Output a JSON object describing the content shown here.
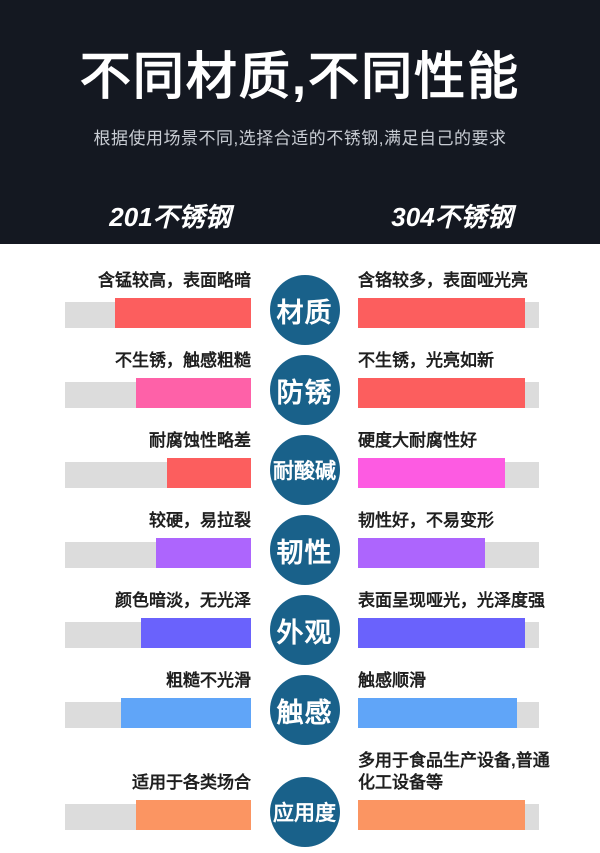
{
  "header": {
    "title": "不同材质,不同性能",
    "subtitle": "根据使用场景不同,选择合适的不锈钢,满足自己的要求",
    "left_column": "201不锈钢",
    "right_column": "304不锈钢"
  },
  "colors": {
    "header_bg": "#141821",
    "track": "#dcdcdc",
    "circle": "#19618a",
    "salmon": "#fc5e5e",
    "pink": "#fe61a8",
    "magenta": "#fd5be2",
    "purple": "#ad65fd",
    "violet": "#6a62fc",
    "blue": "#60a5f8",
    "orange": "#fb9562"
  },
  "rows": [
    {
      "category": "材质",
      "left": {
        "text": "含锰较高，表面略暗",
        "fill": 73,
        "color": "#fc5e5e"
      },
      "right": {
        "text": "含铬较多，表面哑光亮",
        "fill": 92,
        "color": "#fc5e5e"
      }
    },
    {
      "category": "防锈",
      "left": {
        "text": "不生锈，触感粗糙",
        "fill": 62,
        "color": "#fe61a8"
      },
      "right": {
        "text": "不生锈，光亮如新",
        "fill": 92,
        "color": "#fc5e5e"
      }
    },
    {
      "category": "耐酸碱",
      "left": {
        "text": "耐腐蚀性略差",
        "fill": 45,
        "color": "#fc5e5e"
      },
      "right": {
        "text": "硬度大耐腐性好",
        "fill": 81,
        "color": "#fd5be2"
      }
    },
    {
      "category": "韧性",
      "left": {
        "text": "较硬，易拉裂",
        "fill": 51,
        "color": "#ad65fd"
      },
      "right": {
        "text": "韧性好，不易变形",
        "fill": 70,
        "color": "#ad65fd"
      }
    },
    {
      "category": "外观",
      "left": {
        "text": "颜色暗淡，无光泽",
        "fill": 59,
        "color": "#6a62fc"
      },
      "right": {
        "text": "表面呈现哑光，光泽度强",
        "fill": 92,
        "color": "#6a62fc"
      }
    },
    {
      "category": "触感",
      "left": {
        "text": "粗糙不光滑",
        "fill": 70,
        "color": "#60a5f8"
      },
      "right": {
        "text": "触感顺滑",
        "fill": 88,
        "color": "#60a5f8"
      }
    },
    {
      "category": "应用度",
      "left": {
        "text": "适用于各类场合",
        "fill": 62,
        "color": "#fb9562"
      },
      "right": {
        "text": "多用于食品生产设备,普通\n化工设备等",
        "fill": 92,
        "color": "#fb9562"
      }
    }
  ],
  "chart_data": {
    "type": "bar",
    "title": "不同材质,不同性能",
    "subtitle": "根据使用场景不同,选择合适的不锈钢,满足自己的要求",
    "categories": [
      "材质",
      "防锈",
      "耐酸碱",
      "韧性",
      "外观",
      "触感",
      "应用度"
    ],
    "series": [
      {
        "name": "201不锈钢",
        "values": [
          73,
          62,
          45,
          51,
          59,
          70,
          62
        ],
        "labels": [
          "含锰较高，表面略暗",
          "不生锈，触感粗糙",
          "耐腐蚀性略差",
          "较硬，易拉裂",
          "颜色暗淡，无光泽",
          "粗糙不光滑",
          "适用于各类场合"
        ]
      },
      {
        "name": "304不锈钢",
        "values": [
          92,
          92,
          81,
          70,
          92,
          88,
          92
        ],
        "labels": [
          "含铬较多，表面哑光亮",
          "不生锈，光亮如新",
          "硬度大耐腐性好",
          "韧性好，不易变形",
          "表面呈现哑光，光泽度强",
          "触感顺滑",
          "多用于食品生产设备,普通化工设备等"
        ]
      }
    ],
    "ylim": [
      0,
      100
    ],
    "unit": "% of rating track filled",
    "legend_position": "top",
    "grid": false
  }
}
